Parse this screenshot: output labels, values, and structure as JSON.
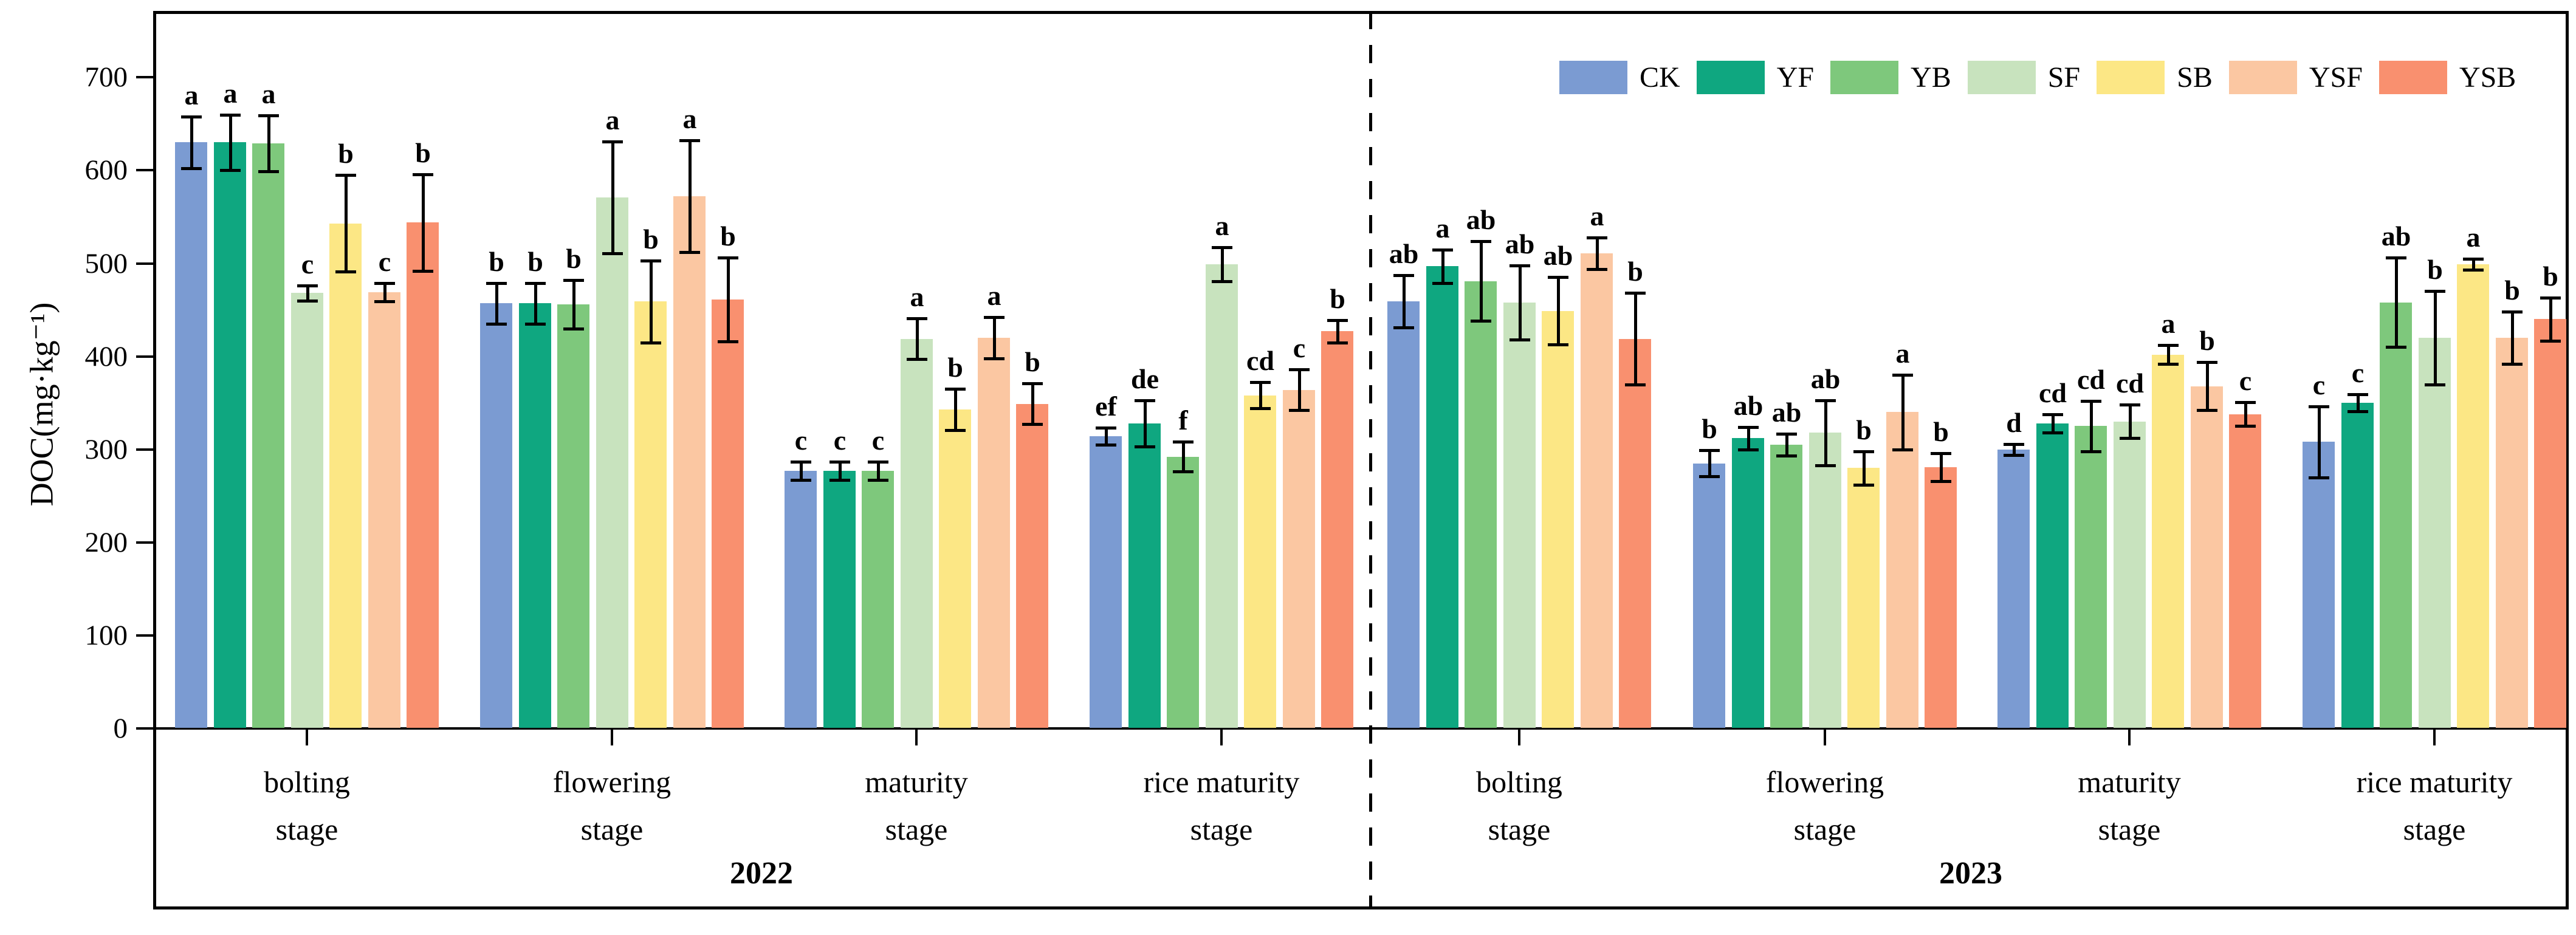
{
  "chart_data": {
    "type": "bar",
    "title": "",
    "ylabel": "DOC(mg·kg⁻¹)",
    "ylim": [
      0,
      700
    ],
    "yticks": [
      "0",
      "100",
      "200",
      "300",
      "400",
      "500",
      "600",
      "700"
    ],
    "grid": false,
    "legend_position": "top-right",
    "series_names": [
      "CK",
      "YF",
      "YB",
      "SF",
      "SB",
      "YSF",
      "YSB"
    ],
    "series_colors": [
      "#7B9BD2",
      "#0FA780",
      "#7EC87C",
      "#C8E3BE",
      "#FCE785",
      "#FBC7A2",
      "#F9906F"
    ],
    "error_bar_color": "#000000",
    "years": [
      {
        "label": "2022",
        "groups": [
          {
            "stage_line1": "bolting",
            "stage_line2": "stage",
            "values": [
              630,
              630,
              629,
              468,
              543,
              469,
              544
            ],
            "errors": [
              28,
              30,
              30,
              8,
              52,
              10,
              52
            ],
            "letters": [
              "a",
              "a",
              "a",
              "c",
              "b",
              "c",
              "b"
            ]
          },
          {
            "stage_line1": "flowering",
            "stage_line2": "stage",
            "values": [
              457,
              457,
              456,
              571,
              459,
              572,
              461
            ],
            "errors": [
              22,
              22,
              26,
              60,
              44,
              60,
              45
            ],
            "letters": [
              "b",
              "b",
              "b",
              "a",
              "b",
              "a",
              "b"
            ]
          },
          {
            "stage_line1": "maturity",
            "stage_line2": "stage",
            "values": [
              277,
              277,
              277,
              419,
              343,
              420,
              349
            ],
            "errors": [
              10,
              10,
              10,
              22,
              22,
              22,
              22
            ],
            "letters": [
              "c",
              "c",
              "c",
              "a",
              "b",
              "a",
              "b"
            ]
          },
          {
            "stage_line1": "rice maturity",
            "stage_line2": "stage",
            "values": [
              314,
              328,
              292,
              499,
              358,
              364,
              427
            ],
            "errors": [
              9,
              25,
              16,
              18,
              14,
              22,
              12
            ],
            "letters": [
              "ef",
              "de",
              "f",
              "a",
              "cd",
              "c",
              "b"
            ]
          }
        ]
      },
      {
        "label": "2023",
        "groups": [
          {
            "stage_line1": "bolting",
            "stage_line2": "stage",
            "values": [
              459,
              497,
              481,
              458,
              449,
              511,
              419
            ],
            "errors": [
              28,
              18,
              43,
              40,
              36,
              17,
              49
            ],
            "letters": [
              "ab",
              "a",
              "ab",
              "ab",
              "ab",
              "a",
              "b"
            ]
          },
          {
            "stage_line1": "flowering",
            "stage_line2": "stage",
            "values": [
              285,
              312,
              305,
              318,
              280,
              340,
              281
            ],
            "errors": [
              14,
              12,
              12,
              35,
              18,
              40,
              15
            ],
            "letters": [
              "b",
              "ab",
              "ab",
              "ab",
              "b",
              "a",
              "b"
            ]
          },
          {
            "stage_line1": "maturity",
            "stage_line2": "stage",
            "values": [
              300,
              328,
              325,
              330,
              402,
              368,
              338
            ],
            "errors": [
              6,
              10,
              27,
              18,
              10,
              26,
              13
            ],
            "letters": [
              "d",
              "cd",
              "cd",
              "cd",
              "a",
              "b",
              "c"
            ]
          },
          {
            "stage_line1": "rice maturity",
            "stage_line2": "stage",
            "values": [
              308,
              350,
              458,
              420,
              499,
              420,
              440
            ],
            "errors": [
              38,
              9,
              48,
              50,
              6,
              28,
              23
            ],
            "letters": [
              "c",
              "c",
              "ab",
              "b",
              "a",
              "b",
              "b"
            ]
          }
        ]
      }
    ]
  }
}
